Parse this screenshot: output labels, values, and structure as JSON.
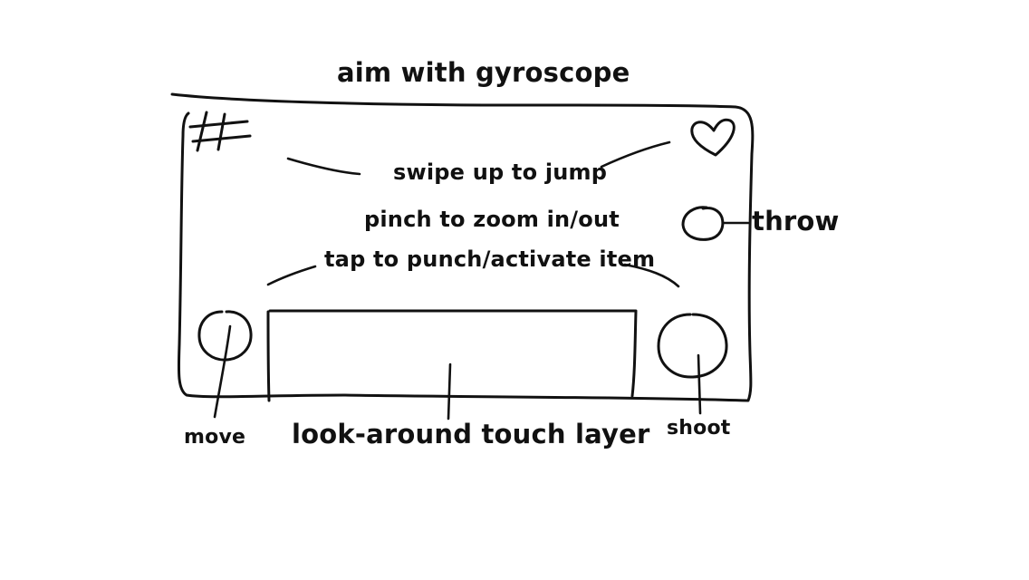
{
  "title": "aim with gyroscope",
  "instructions": {
    "jump": "swipe up to jump",
    "zoom": "pinch to zoom in/out",
    "tap": "tap to punch/activate item"
  },
  "controls": {
    "throw": "throw",
    "move": "move",
    "look": "look-around touch layer",
    "shoot": "shoot"
  },
  "icons": {
    "menu": "hash-icon",
    "health": "heart-icon"
  },
  "colors": {
    "ink": "#111111",
    "paper": "#ffffff"
  }
}
